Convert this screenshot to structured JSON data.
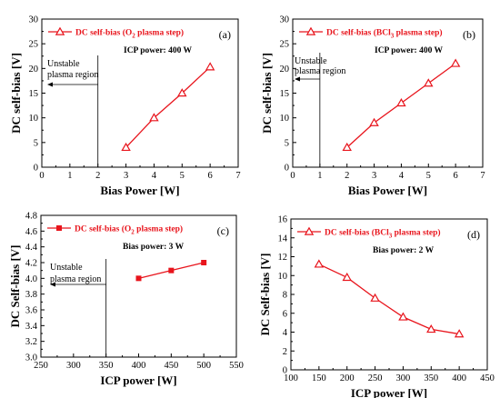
{
  "chart_data": [
    {
      "id": "a",
      "type": "line",
      "panel_label": "(a)",
      "xlabel": "Bias Power [W]",
      "ylabel": "DC self-bias [V]",
      "xlim": [
        0,
        7
      ],
      "ylim": [
        0,
        30
      ],
      "x_ticks": [
        0,
        1,
        2,
        3,
        4,
        5,
        6,
        7
      ],
      "y_ticks": [
        0,
        5,
        10,
        15,
        20,
        25,
        30
      ],
      "grid": false,
      "legend_position": "top-left",
      "series": [
        {
          "legend_prefix": "DC self-bias (O",
          "legend_sub": "2",
          "legend_suffix": " plasma step)",
          "color": "#e8141c",
          "marker": "open-triangle",
          "x": [
            3,
            4,
            5,
            6
          ],
          "y": [
            4,
            10,
            15,
            20.3
          ]
        }
      ],
      "info_text": "ICP power: 400 W",
      "annotation": {
        "lines": [
          "Unstable",
          "plasma region"
        ],
        "boundary_x": 2
      }
    },
    {
      "id": "b",
      "type": "line",
      "panel_label": "(b)",
      "xlabel": "Bias Power [W]",
      "ylabel": "DC self-bias [V]",
      "xlim": [
        0,
        7
      ],
      "ylim": [
        0,
        30
      ],
      "x_ticks": [
        0,
        1,
        2,
        3,
        4,
        5,
        6,
        7
      ],
      "y_ticks": [
        0,
        5,
        10,
        15,
        20,
        25,
        30
      ],
      "grid": false,
      "legend_position": "top-left",
      "series": [
        {
          "legend_prefix": "DC self-bias (BCl",
          "legend_sub": "3",
          "legend_suffix": " plasma step)",
          "color": "#e8141c",
          "marker": "open-triangle",
          "x": [
            2,
            3,
            4,
            5,
            6
          ],
          "y": [
            4,
            9,
            13,
            17,
            21
          ]
        }
      ],
      "info_text": "ICP power: 400 W",
      "annotation": {
        "lines": [
          "Unstable",
          "plasma region"
        ],
        "boundary_x": 1
      }
    },
    {
      "id": "c",
      "type": "line",
      "panel_label": "(c)",
      "xlabel": "ICP power [W]",
      "ylabel": "DC Self-bias [V]",
      "xlim": [
        250,
        550
      ],
      "ylim": [
        3.0,
        4.8
      ],
      "x_ticks": [
        250,
        300,
        350,
        400,
        450,
        500,
        550
      ],
      "y_ticks": [
        3.0,
        3.2,
        3.4,
        3.6,
        3.8,
        4.0,
        4.2,
        4.4,
        4.6,
        4.8
      ],
      "y_tick_decimals": 1,
      "grid": false,
      "legend_position": "top-left",
      "series": [
        {
          "legend_prefix": "DC self-bias (O",
          "legend_sub": "2",
          "legend_suffix": " plasma step)",
          "color": "#e8141c",
          "marker": "filled-square",
          "x": [
            400,
            450,
            500
          ],
          "y": [
            4.0,
            4.1,
            4.2
          ]
        }
      ],
      "info_text": "Bias power: 3 W",
      "annotation": {
        "lines": [
          "Unstable",
          "plasma region"
        ],
        "boundary_x": 350
      }
    },
    {
      "id": "d",
      "type": "line",
      "panel_label": "(d)",
      "xlabel": "ICP power [W]",
      "ylabel": "DC Self-bias [V]",
      "xlim": [
        100,
        450
      ],
      "ylim": [
        0,
        16
      ],
      "x_ticks": [
        100,
        150,
        200,
        250,
        300,
        350,
        400,
        450
      ],
      "y_ticks": [
        0,
        2,
        4,
        6,
        8,
        10,
        12,
        14,
        16
      ],
      "grid": false,
      "legend_position": "top-left",
      "series": [
        {
          "legend_prefix": "DC self-bias (BCl",
          "legend_sub": "3",
          "legend_suffix": " plasma step)",
          "color": "#e8141c",
          "marker": "open-triangle",
          "x": [
            150,
            200,
            250,
            300,
            350,
            400
          ],
          "y": [
            11.2,
            9.8,
            7.6,
            5.6,
            4.3,
            3.8
          ]
        }
      ],
      "info_text": "Bias power: 2 W"
    }
  ]
}
